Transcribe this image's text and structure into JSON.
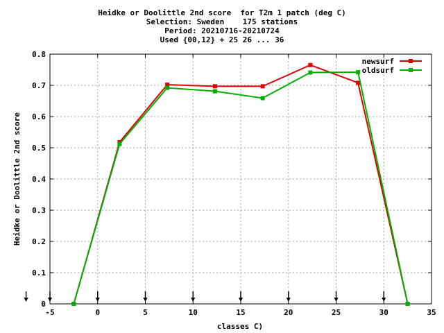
{
  "chart_data": {
    "type": "line",
    "title_lines": [
      "Heidke or Doolittle 2nd score  for T2m 1 patch (deg C)",
      "Selection: Sweden    175 stations",
      "Period: 20210716-20210724",
      "Used {00,12} + 25 26 ... 36"
    ],
    "xlabel": "classes C)",
    "ylabel": "Heidke or Doolittle 2nd score",
    "xlim": [
      -5,
      35
    ],
    "ylim": [
      0,
      0.8
    ],
    "xticks": [
      -5,
      0,
      5,
      10,
      15,
      20,
      25,
      30,
      35
    ],
    "yticks": [
      0,
      0.1,
      0.2,
      0.3,
      0.4,
      0.5,
      0.6,
      0.7,
      0.8
    ],
    "xtick_labels": [
      "-5",
      "0",
      "5",
      "10",
      "15",
      "20",
      "25",
      "30",
      "35"
    ],
    "ytick_labels": [
      "0",
      "0.1",
      "0.2",
      "0.3",
      "0.4",
      "0.5",
      "0.6",
      "0.7",
      "0.8"
    ],
    "grid": true,
    "legend_position": "top-right",
    "series": [
      {
        "name": "newsurf",
        "color": "#e00000",
        "x": [
          -2.5,
          2.3,
          7.3,
          12.3,
          17.3,
          22.3,
          27.3,
          32.5
        ],
        "y": [
          0.0,
          0.518,
          0.702,
          0.697,
          0.697,
          0.765,
          0.708,
          0.0
        ]
      },
      {
        "name": "oldsurf",
        "color": "#00b000",
        "x": [
          -2.5,
          2.3,
          7.3,
          12.3,
          17.3,
          22.3,
          27.3,
          32.5
        ],
        "y": [
          0.0,
          0.512,
          0.692,
          0.681,
          0.659,
          0.741,
          0.742,
          0.0
        ]
      }
    ],
    "arrow_markers_x": [
      -7.5,
      -5,
      0,
      5,
      10,
      15,
      20,
      25,
      30
    ]
  }
}
